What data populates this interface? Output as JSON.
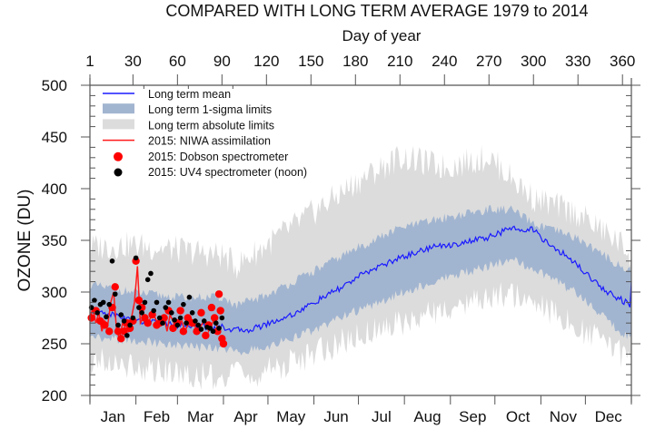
{
  "chart_data": {
    "type": "line",
    "title": "COMPARED WITH LONG TERM AVERAGE 1979 to 2014",
    "xlabel_top": "Day of year",
    "ylabel": "OZONE (DU)",
    "xlim": [
      1,
      366
    ],
    "ylim": [
      200,
      500
    ],
    "y_ticks": [
      200,
      250,
      300,
      350,
      400,
      450,
      500
    ],
    "y_tick_labels": [
      "200",
      "250",
      "300",
      "350",
      "400",
      "450",
      "500"
    ],
    "x_top_ticks": [
      1,
      30,
      60,
      90,
      120,
      150,
      180,
      210,
      240,
      270,
      300,
      330,
      360
    ],
    "x_top_tick_labels": [
      "1",
      "30",
      "60",
      "90",
      "120",
      "150",
      "180",
      "210",
      "240",
      "270",
      "300",
      "330",
      "360"
    ],
    "month_starts": [
      1,
      32,
      60,
      91,
      121,
      152,
      182,
      213,
      244,
      274,
      305,
      335,
      366
    ],
    "month_labels": [
      "Jan",
      "Feb",
      "Mar",
      "Apr",
      "May",
      "Jun",
      "Jul",
      "Aug",
      "Sep",
      "Oct",
      "Nov",
      "Dec"
    ],
    "grid": false,
    "legend_position": "top-left",
    "legend": [
      {
        "label": "Long term mean",
        "kind": "line",
        "color": "#1a1aff"
      },
      {
        "label": "Long term 1-sigma limits",
        "kind": "band",
        "color": "#a2b5d0"
      },
      {
        "label": "Long term absolute limits",
        "kind": "band",
        "color": "#dcdcdc"
      },
      {
        "label": "2015: NIWA assimilation",
        "kind": "line",
        "color": "#ff1a1a"
      },
      {
        "label": "2015: Dobson spectrometer",
        "kind": "marker",
        "color": "#ff0000"
      },
      {
        "label": "2015: UV4 spectrometer (noon)",
        "kind": "marker",
        "color": "#000000"
      }
    ],
    "series": [
      {
        "name": "Long term mean",
        "x": [
          1,
          10,
          20,
          30,
          40,
          50,
          60,
          70,
          80,
          90,
          100,
          110,
          120,
          130,
          140,
          150,
          160,
          170,
          180,
          190,
          200,
          210,
          220,
          230,
          240,
          250,
          260,
          270,
          280,
          290,
          300,
          310,
          320,
          330,
          340,
          350,
          360,
          365,
          366
        ],
        "values": [
          283,
          280,
          277,
          273,
          271,
          270,
          268,
          268,
          266,
          266,
          263,
          264,
          269,
          274,
          280,
          288,
          296,
          304,
          313,
          321,
          327,
          333,
          338,
          343,
          345,
          347,
          350,
          353,
          359,
          362,
          360,
          346,
          337,
          326,
          312,
          300,
          292,
          287,
          310
        ]
      },
      {
        "name": "1-sigma upper",
        "x": [
          1,
          30,
          60,
          90,
          100,
          120,
          150,
          180,
          210,
          240,
          270,
          285,
          300,
          330,
          360,
          366
        ],
        "values": [
          305,
          298,
          293,
          293,
          285,
          295,
          317,
          340,
          360,
          370,
          378,
          378,
          364,
          350,
          322,
          318
        ]
      },
      {
        "name": "1-sigma lower",
        "x": [
          1,
          30,
          60,
          90,
          100,
          120,
          150,
          180,
          210,
          240,
          270,
          285,
          300,
          330,
          360,
          366
        ],
        "values": [
          258,
          255,
          250,
          247,
          244,
          249,
          264,
          283,
          300,
          315,
          327,
          333,
          325,
          300,
          262,
          258
        ]
      },
      {
        "name": "Absolute upper",
        "x": [
          1,
          30,
          60,
          90,
          100,
          120,
          150,
          180,
          210,
          240,
          270,
          285,
          300,
          330,
          360,
          366
        ],
        "values": [
          338,
          340,
          335,
          330,
          320,
          340,
          370,
          400,
          425,
          415,
          425,
          405,
          385,
          370,
          340,
          330
        ]
      },
      {
        "name": "Absolute lower",
        "x": [
          1,
          30,
          60,
          90,
          100,
          120,
          150,
          180,
          210,
          240,
          270,
          285,
          300,
          330,
          360,
          366
        ],
        "values": [
          240,
          235,
          228,
          222,
          225,
          228,
          245,
          262,
          275,
          290,
          300,
          305,
          295,
          272,
          245,
          240
        ]
      },
      {
        "name": "2015: NIWA assimilation",
        "x": [
          1,
          3,
          5,
          7,
          9,
          11,
          13,
          15,
          17,
          19,
          21,
          23,
          25,
          27,
          29,
          31,
          33,
          35,
          37,
          39,
          41,
          43,
          45,
          47,
          49,
          51,
          53,
          55,
          57,
          59,
          61,
          63,
          65,
          67,
          69,
          71,
          73,
          75,
          77,
          79,
          81,
          83,
          85,
          87,
          89
        ],
        "values": [
          275,
          285,
          270,
          280,
          262,
          272,
          268,
          290,
          300,
          262,
          255,
          270,
          265,
          262,
          275,
          290,
          325,
          270,
          275,
          268,
          272,
          280,
          275,
          268,
          272,
          275,
          262,
          278,
          272,
          265,
          270,
          272,
          262,
          268,
          275,
          270,
          262,
          265,
          270,
          272,
          262,
          268,
          275,
          265,
          262
        ]
      }
    ],
    "scatter": [
      {
        "name": "2015: Dobson spectrometer",
        "x": [
          2,
          5,
          8,
          11,
          14,
          16,
          18,
          20,
          22,
          24,
          26,
          28,
          30,
          32,
          34,
          36,
          38,
          40,
          43,
          46,
          48,
          51,
          54,
          57,
          60,
          62,
          64,
          67,
          70,
          73,
          76,
          79,
          81,
          83,
          85,
          87,
          88,
          89,
          90,
          91
        ],
        "y": [
          275,
          282,
          272,
          268,
          262,
          285,
          305,
          262,
          255,
          262,
          270,
          265,
          272,
          330,
          292,
          285,
          275,
          270,
          278,
          268,
          270,
          275,
          282,
          265,
          270,
          282,
          262,
          275,
          270,
          262,
          280,
          258,
          268,
          285,
          275,
          262,
          298,
          282,
          255,
          250
        ]
      },
      {
        "name": "2015: UV4 spectrometer (noon)",
        "x": [
          2,
          4,
          6,
          8,
          10,
          12,
          14,
          16,
          18,
          20,
          22,
          24,
          26,
          28,
          30,
          32,
          34,
          36,
          38,
          40,
          42,
          44,
          46,
          48,
          50,
          52,
          54,
          56,
          58,
          60,
          62,
          64,
          66,
          68,
          70,
          72,
          74,
          76,
          78,
          80,
          82,
          84,
          86,
          88,
          90
        ],
        "y": [
          285,
          292,
          280,
          288,
          290,
          276,
          288,
          330,
          298,
          268,
          278,
          272,
          258,
          268,
          275,
          333,
          285,
          280,
          290,
          312,
          318,
          282,
          290,
          275,
          270,
          285,
          290,
          280,
          273,
          268,
          275,
          288,
          270,
          295,
          280,
          272,
          268,
          264,
          272,
          266,
          265,
          262,
          270,
          265,
          275
        ]
      }
    ]
  }
}
